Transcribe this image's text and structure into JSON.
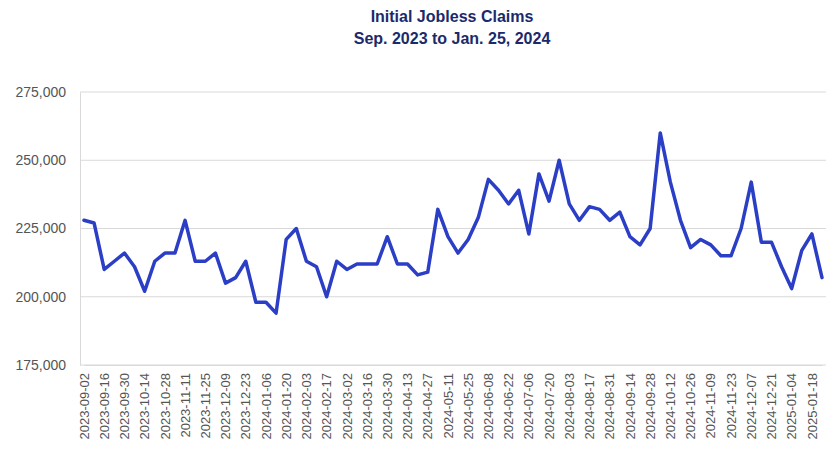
{
  "chart_data": {
    "type": "line",
    "title": "Initial Jobless Claims",
    "subtitle": "Sep. 2023 to Jan. 25, 2024",
    "categories": [
      "2023-09-02",
      null,
      "2023-09-16",
      null,
      "2023-09-30",
      null,
      "2023-10-14",
      null,
      "2023-10-28",
      null,
      "2023-11-11",
      null,
      "2023-11-25",
      null,
      "2023-12-09",
      null,
      "2023-12-23",
      null,
      "2024-01-06",
      null,
      "2024-01-20",
      null,
      "2024-02-03",
      null,
      "2024-02-17",
      null,
      "2024-03-02",
      null,
      "2024-03-16",
      null,
      "2024-03-30",
      null,
      "2024-04-13",
      null,
      "2024-04-27",
      null,
      "2024-05-11",
      null,
      "2024-05-25",
      null,
      "2024-06-08",
      null,
      "2024-06-22",
      null,
      "2024-07-06",
      null,
      "2024-07-20",
      null,
      "2024-08-03",
      null,
      "2024-08-17",
      null,
      "2024-08-31",
      null,
      "2024-09-14",
      null,
      "2024-09-28",
      null,
      "2024-10-12",
      null,
      "2024-10-26",
      null,
      "2024-11-09",
      null,
      "2024-11-23",
      null,
      "2024-12-07",
      null,
      "2024-12-21",
      null,
      "2025-01-04",
      null,
      "2025-01-18",
      null
    ],
    "values": [
      228000,
      227000,
      210000,
      213000,
      216000,
      211000,
      202000,
      213000,
      216000,
      216000,
      228000,
      213000,
      213000,
      216000,
      205000,
      207000,
      213000,
      198000,
      198000,
      194000,
      221000,
      225000,
      213000,
      211000,
      200000,
      213000,
      210000,
      212000,
      212000,
      212000,
      222000,
      212000,
      212000,
      208000,
      209000,
      232000,
      222000,
      216000,
      221000,
      229000,
      243000,
      239000,
      234000,
      239000,
      223000,
      245000,
      235000,
      250000,
      234000,
      228000,
      233000,
      232000,
      228000,
      231000,
      222000,
      219000,
      225000,
      260000,
      242000,
      228000,
      218000,
      221000,
      219000,
      215000,
      215000,
      225000,
      242000,
      220000,
      220000,
      211000,
      203000,
      217000,
      223000,
      207000
    ],
    "color": "#2b3ec6",
    "ylim": [
      175000,
      275000
    ],
    "yticks": [
      {
        "value": 175000,
        "label": "175,000"
      },
      {
        "value": 200000,
        "label": "200,000"
      },
      {
        "value": 225000,
        "label": "225,000"
      },
      {
        "value": 250000,
        "label": "250,000"
      },
      {
        "value": 275000,
        "label": "275,000"
      }
    ],
    "grid": true
  }
}
